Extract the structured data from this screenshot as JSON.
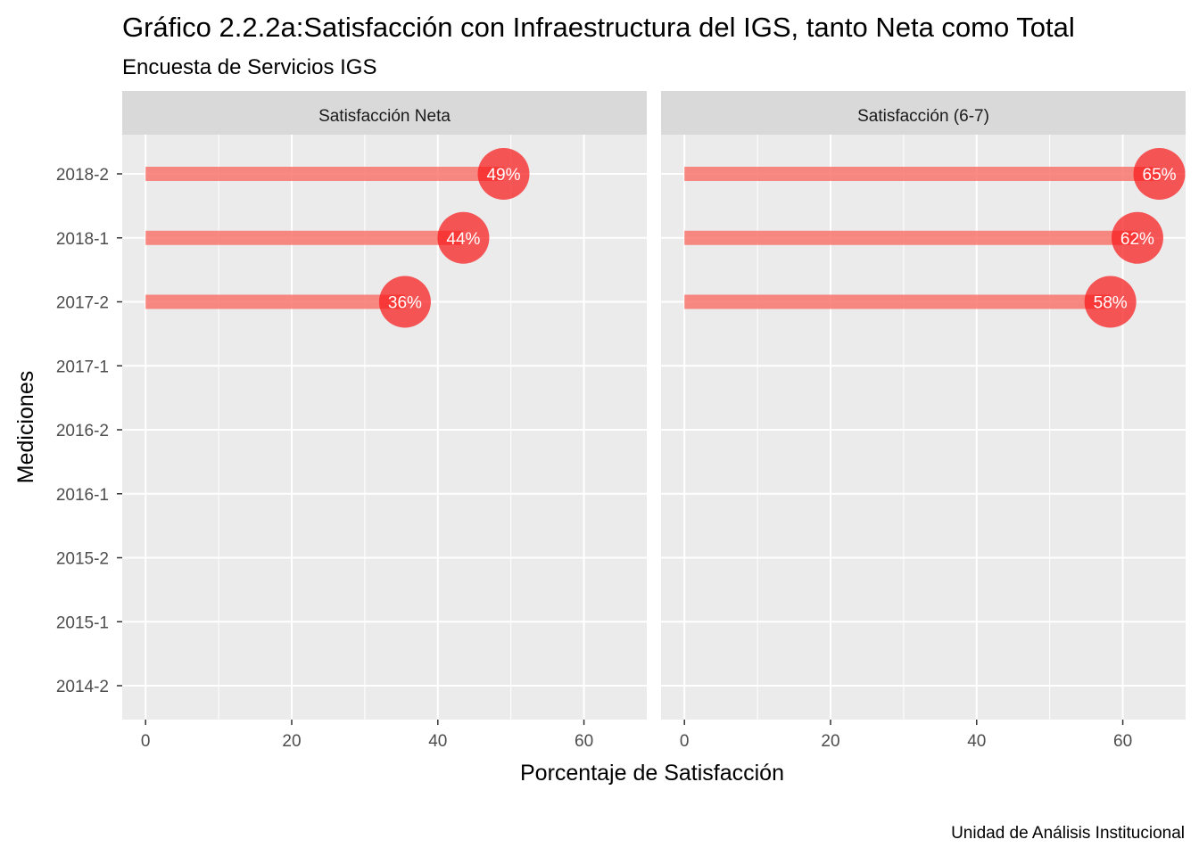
{
  "chart_data": {
    "type": "lollipop",
    "title": "Gráfico 2.2.2a:Satisfacción con Infraestructura del IGS, tanto Neta como Total",
    "subtitle": "Encuesta de Servicios IGS",
    "caption": "Unidad de Análisis Institucional",
    "xlabel": "Porcentaje de Satisfacción",
    "ylabel": "Mediciones",
    "categories": [
      "2014-2",
      "2015-1",
      "2015-2",
      "2016-1",
      "2016-2",
      "2017-1",
      "2017-2",
      "2018-1",
      "2018-2"
    ],
    "xlim": [
      -3.2,
      68.6
    ],
    "xticks": [
      0,
      20,
      40,
      60
    ],
    "grid": true,
    "colors": {
      "bar": "#f8766d",
      "point": "#f8191a",
      "panel": "#ebebeb",
      "strip": "#d9d9d9",
      "grid": "#ffffff"
    },
    "panels": [
      {
        "name": "Satisfacción Neta",
        "points": [
          {
            "category": "2017-2",
            "value": 35.5,
            "label": "36%"
          },
          {
            "category": "2018-1",
            "value": 43.5,
            "label": "44%"
          },
          {
            "category": "2018-2",
            "value": 49.0,
            "label": "49%"
          }
        ]
      },
      {
        "name": "Satisfacción (6-7)",
        "points": [
          {
            "category": "2017-2",
            "value": 58.3,
            "label": "58%"
          },
          {
            "category": "2018-1",
            "value": 62.0,
            "label": "62%"
          },
          {
            "category": "2018-2",
            "value": 65.0,
            "label": "65%"
          }
        ]
      }
    ]
  }
}
